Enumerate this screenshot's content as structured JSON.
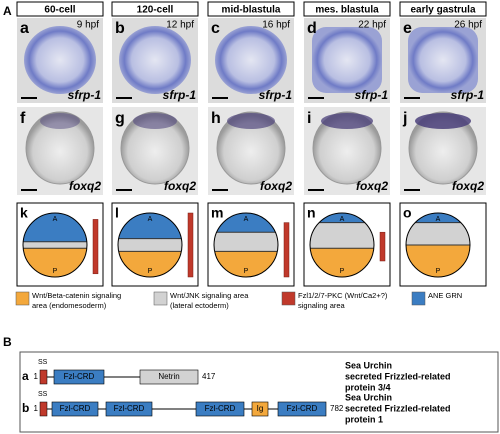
{
  "panel_a": {
    "label": "A",
    "stages": [
      "60-cell",
      "120-cell",
      "mid-blastula",
      "mes. blastula",
      "early gastrula"
    ],
    "row1": [
      {
        "letter": "a",
        "time": "9 hpf",
        "gene": "sfrp-1"
      },
      {
        "letter": "b",
        "time": "12 hpf",
        "gene": "sfrp-1"
      },
      {
        "letter": "c",
        "time": "16 hpf",
        "gene": "sfrp-1"
      },
      {
        "letter": "d",
        "time": "22 hpf",
        "gene": "sfrp-1"
      },
      {
        "letter": "e",
        "time": "26 hpf",
        "gene": "sfrp-1"
      }
    ],
    "row2": [
      {
        "letter": "f",
        "gene": "foxq2"
      },
      {
        "letter": "g",
        "gene": "foxq2"
      },
      {
        "letter": "h",
        "gene": "foxq2"
      },
      {
        "letter": "i",
        "gene": "foxq2"
      },
      {
        "letter": "j",
        "gene": "foxq2"
      }
    ],
    "diagrams": [
      {
        "letter": "k",
        "top": "A",
        "bottom": "P"
      },
      {
        "letter": "l",
        "top": "A",
        "bottom": "P"
      },
      {
        "letter": "m",
        "top": "A",
        "bottom": "P"
      },
      {
        "letter": "n",
        "top": "A",
        "bottom": "P"
      },
      {
        "letter": "o",
        "top": "A",
        "bottom": "P"
      }
    ],
    "legend": [
      {
        "lines": [
          "Wnt/Beta-catenin signaling",
          "area (endomesoderm)"
        ]
      },
      {
        "lines": [
          "Wnt/JNK signaling area",
          "(lateral ectoderm)"
        ]
      },
      {
        "lines": [
          "Fzl1/2/7-PKC (Wnt/Ca2+?)",
          "signaling area"
        ]
      },
      {
        "lines": [
          "ANE GRN"
        ]
      }
    ]
  },
  "panel_b": {
    "label": "B",
    "proteins": [
      {
        "letter": "a",
        "signal": "SS",
        "start": "1",
        "domains": [
          "Fzl-CRD",
          "Netrin"
        ],
        "end": "417",
        "description": [
          "Sea Urchin",
          "secreted Frizzled-related",
          "protein 3/4"
        ]
      },
      {
        "letter": "b",
        "signal": "SS",
        "start": "1",
        "domains": [
          "Fzl-CRD",
          "Fzl-CRD",
          "Fzl-CRD",
          "Ig",
          "Fzl-CRD"
        ],
        "end": "782",
        "description": [
          "Sea Urchin",
          "secreted Frizzled-related",
          "protein 1"
        ]
      }
    ]
  }
}
